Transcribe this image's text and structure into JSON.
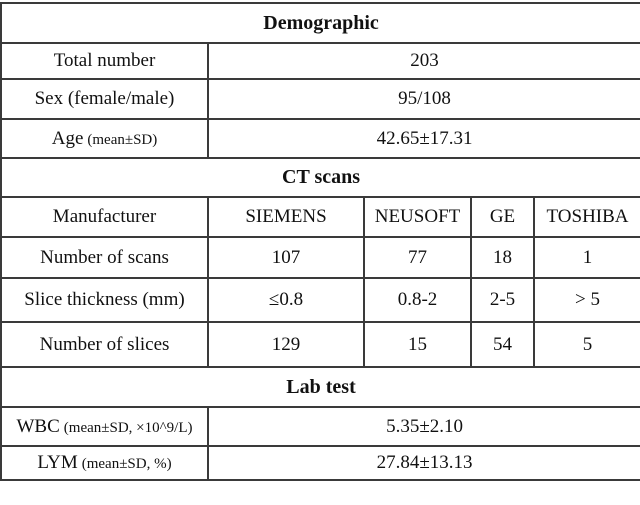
{
  "demographic": {
    "title": "Demographic",
    "rows": [
      {
        "label": "Total number",
        "value": "203"
      },
      {
        "label": "Sex (female/male)",
        "value": "95/108"
      },
      {
        "label": "Age",
        "label_paren": "(mean±SD)",
        "value": "42.65±17.31"
      }
    ]
  },
  "ct_scans": {
    "title": "CT scans",
    "manufacturer_row": {
      "label": "Manufacturer",
      "values": [
        "SIEMENS",
        "NEUSOFT",
        "GE",
        "TOSHIBA"
      ]
    },
    "rows": [
      {
        "label": "Number of scans",
        "values": [
          "107",
          "77",
          "18",
          "1"
        ]
      },
      {
        "label": "Slice thickness (mm)",
        "values": [
          "≤0.8",
          "0.8-2",
          "2-5",
          "> 5"
        ]
      },
      {
        "label": "Number of slices",
        "values": [
          "129",
          "15",
          "54",
          "5"
        ]
      }
    ]
  },
  "lab_test": {
    "title": "Lab test",
    "rows": [
      {
        "label": "WBC",
        "label_paren": "(mean±SD, ×10^9/L)",
        "value": "5.35±2.10"
      },
      {
        "label": "LYM",
        "label_paren": "(mean±SD, %)",
        "value": "27.84±13.13"
      }
    ]
  }
}
